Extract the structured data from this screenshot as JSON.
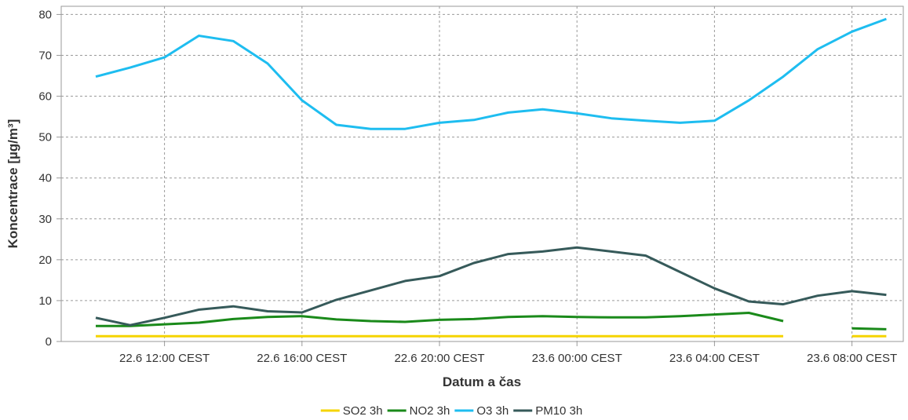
{
  "chart_data": {
    "type": "line",
    "title": "",
    "xlabel": "Datum a čas",
    "ylabel": "Koncentrace [µg/m³]",
    "ylim": [
      0,
      82
    ],
    "yticks": [
      0,
      10,
      20,
      30,
      40,
      50,
      60,
      70,
      80
    ],
    "x": [
      "22.6 10:00",
      "22.6 11:00",
      "22.6 12:00",
      "22.6 13:00",
      "22.6 14:00",
      "22.6 15:00",
      "22.6 16:00",
      "22.6 17:00",
      "22.6 18:00",
      "22.6 19:00",
      "22.6 20:00",
      "22.6 21:00",
      "22.6 22:00",
      "22.6 23:00",
      "23.6 00:00",
      "23.6 01:00",
      "23.6 02:00",
      "23.6 03:00",
      "23.6 04:00",
      "23.6 05:00",
      "23.6 06:00",
      "23.6 07:00",
      "23.6 08:00",
      "23.6 09:00"
    ],
    "xticks": [
      {
        "index": 2,
        "label": "22.6 12:00 CEST"
      },
      {
        "index": 6,
        "label": "22.6 16:00 CEST"
      },
      {
        "index": 10,
        "label": "22.6 20:00 CEST"
      },
      {
        "index": 14,
        "label": "23.6 00:00 CEST"
      },
      {
        "index": 18,
        "label": "23.6 04:00 CEST"
      },
      {
        "index": 22,
        "label": "23.6 08:00 CEST"
      }
    ],
    "series": [
      {
        "name": "SO2 3h",
        "color": "#f5d400",
        "values": [
          1.3,
          1.3,
          1.3,
          1.3,
          1.3,
          1.3,
          1.3,
          1.3,
          1.3,
          1.3,
          1.3,
          1.3,
          1.3,
          1.3,
          1.3,
          1.3,
          1.3,
          1.3,
          1.3,
          1.3,
          1.3,
          null,
          1.3,
          1.3
        ]
      },
      {
        "name": "NO2 3h",
        "color": "#1a8a1a",
        "values": [
          3.8,
          3.8,
          4.2,
          4.6,
          5.5,
          6.0,
          6.2,
          5.4,
          5.0,
          4.8,
          5.3,
          5.5,
          6.0,
          6.2,
          6.0,
          5.9,
          5.9,
          6.2,
          6.6,
          7.0,
          5.0,
          null,
          3.2,
          3.0
        ]
      },
      {
        "name": "O3 3h",
        "color": "#1ebdf0",
        "values": [
          64.8,
          67.0,
          69.5,
          74.8,
          73.5,
          68.0,
          59.0,
          53.0,
          52.0,
          52.0,
          53.5,
          54.2,
          56.0,
          56.8,
          55.8,
          54.6,
          54.0,
          53.5,
          54.0,
          59.0,
          64.8,
          71.5,
          75.8,
          78.9
        ]
      },
      {
        "name": "PM10 3h",
        "color": "#365a5a",
        "values": [
          5.8,
          4.0,
          5.8,
          7.8,
          8.6,
          7.4,
          7.1,
          10.2,
          12.5,
          14.8,
          16.0,
          19.2,
          21.4,
          22.0,
          23.0,
          22.0,
          21.0,
          17.0,
          13.0,
          9.8,
          9.1,
          11.2,
          12.3,
          11.4
        ]
      }
    ],
    "legend_position": "bottom-center",
    "grid": true
  }
}
